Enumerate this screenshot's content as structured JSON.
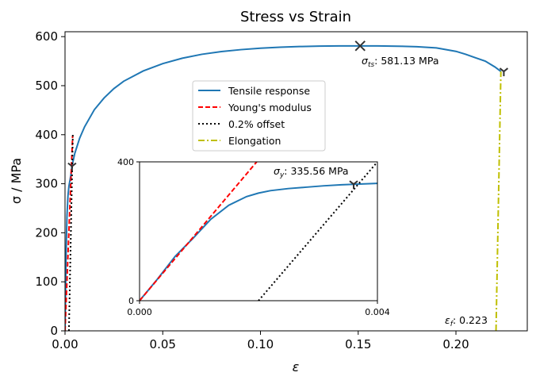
{
  "chart_data": {
    "type": "line",
    "title": "Stress vs Strain",
    "xlabel": "ε",
    "ylabel": "σ / MPa",
    "xlim": [
      0,
      0.2365
    ],
    "ylim": [
      0,
      610
    ],
    "xticks": [
      0,
      0.05,
      0.1,
      0.15,
      0.2
    ],
    "xtick_labels": [
      "0.00",
      "0.05",
      "0.10",
      "0.15",
      "0.20"
    ],
    "yticks": [
      0,
      100,
      200,
      300,
      400,
      500,
      600
    ],
    "ytick_labels": [
      "0",
      "100",
      "200",
      "300",
      "400",
      "500",
      "600"
    ],
    "grid": false,
    "legend_position": "center",
    "colors": {
      "tensile": "#1f77b4",
      "youngs": "#ff0000",
      "offset": "#000000",
      "elongation": "#bfbf00",
      "marker": "#333333"
    },
    "series": [
      {
        "name": "Tensile response",
        "style": "solid",
        "x": [
          0,
          0.0005,
          0.001,
          0.0015,
          0.002,
          0.003,
          0.0035,
          0.005,
          0.0075,
          0.01,
          0.015,
          0.02,
          0.025,
          0.03,
          0.04,
          0.05,
          0.06,
          0.07,
          0.08,
          0.09,
          0.1,
          0.11,
          0.12,
          0.13,
          0.14,
          0.15,
          0.16,
          0.17,
          0.18,
          0.19,
          0.2,
          0.205,
          0.21,
          0.215,
          0.22,
          0.223
        ],
        "y": [
          0,
          145,
          235,
          275,
          295,
          318,
          335,
          362,
          393,
          416,
          451,
          475,
          494,
          509,
          530,
          545,
          556,
          564,
          569.5,
          573.5,
          576.5,
          578.5,
          579.8,
          580.6,
          581,
          581.13,
          581,
          580.5,
          579.5,
          577,
          570,
          564,
          557,
          550,
          538,
          529
        ]
      },
      {
        "name": "Young's modulus",
        "style": "dashed",
        "x": [
          0,
          0.0039
        ],
        "y": [
          0,
          398
        ]
      },
      {
        "name": "0.2% offset",
        "style": "dotted",
        "x": [
          0.002,
          0.004
        ],
        "y": [
          0,
          400
        ]
      },
      {
        "name": "Elongation",
        "style": "dashdot",
        "x": [
          0.2205,
          0.223
        ],
        "y": [
          0,
          529
        ]
      }
    ],
    "markers": [
      {
        "label": "σ_ts",
        "x": 0.151,
        "y": 581.13,
        "symbol": "x"
      },
      {
        "label": "σ_y",
        "x": 0.0036,
        "y": 335.56,
        "symbol": "tri"
      },
      {
        "label": "ε_f",
        "x": 0.2245,
        "y": 529,
        "symbol": "tri"
      }
    ],
    "annotations": {
      "uts": {
        "symbol": "σ",
        "sub": "ts",
        "text": ": 581.13 MPa"
      },
      "yield": {
        "symbol": "σ",
        "sub": "y",
        "text": ": 335.56 MPa"
      },
      "fracture": {
        "symbol": "ε",
        "sub": "f",
        "text": ": 0.223"
      }
    },
    "inset": {
      "xlim": [
        0,
        0.004
      ],
      "ylim": [
        0,
        400
      ],
      "xtick_labels": [
        "0.000",
        "0.004"
      ],
      "ytick_labels": [
        "0",
        "400"
      ],
      "series": [
        {
          "name": "Tensile response",
          "x": [
            0,
            0.0003,
            0.0006,
            0.0009,
            0.0012,
            0.0015,
            0.0018,
            0.002,
            0.0022,
            0.0025,
            0.0028,
            0.0031,
            0.0034,
            0.0037,
            0.004
          ],
          "y": [
            0,
            62,
            128,
            180,
            235,
            275,
            300,
            310,
            317,
            323,
            327,
            331,
            334,
            336,
            338
          ]
        },
        {
          "name": "Young's modulus",
          "x": [
            0,
            0.00197
          ],
          "y": [
            0,
            400
          ]
        },
        {
          "name": "0.2% offset",
          "x": [
            0.002,
            0.004
          ],
          "y": [
            0,
            400
          ]
        }
      ]
    }
  }
}
